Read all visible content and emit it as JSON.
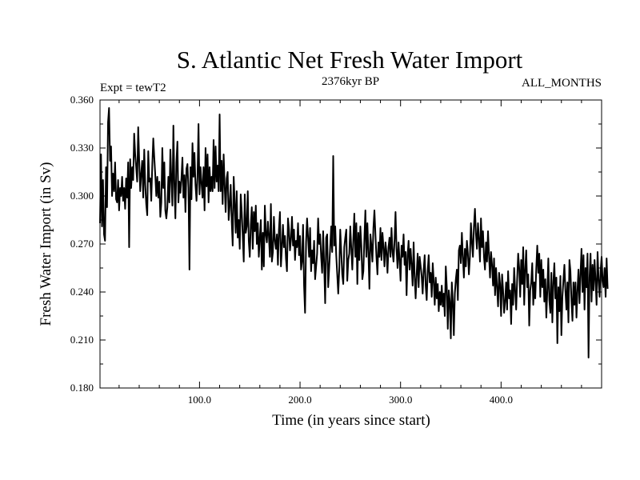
{
  "chart_data": {
    "type": "line",
    "title": "S. Atlantic Net Fresh Water Import",
    "subtitle_left": "Expt = tewT2",
    "subtitle_center": "2376kyr BP",
    "subtitle_right": "ALL_MONTHS",
    "xlabel": "Time (in years since start)",
    "ylabel": "Fresh Water Import (in Sv)",
    "xlim": [
      1,
      500
    ],
    "ylim": [
      0.18,
      0.36
    ],
    "xticks": [
      100,
      200,
      300,
      400
    ],
    "xtick_labels": [
      "100.0",
      "200.0",
      "300.0",
      "400.0"
    ],
    "yticks": [
      0.18,
      0.21,
      0.24,
      0.27,
      0.3,
      0.33,
      0.36
    ],
    "ytick_labels": [
      "0.180",
      "0.210",
      "0.240",
      "0.270",
      "0.300",
      "0.330",
      "0.360"
    ],
    "series": [
      {
        "name": "Fresh Water Import",
        "x_start": 1,
        "x_step": 1,
        "values": [
          0.283,
          0.326,
          0.281,
          0.31,
          0.276,
          0.272,
          0.318,
          0.293,
          0.346,
          0.355,
          0.322,
          0.331,
          0.3,
          0.314,
          0.303,
          0.321,
          0.298,
          0.296,
          0.31,
          0.291,
          0.305,
          0.3,
          0.312,
          0.297,
          0.305,
          0.292,
          0.311,
          0.299,
          0.321,
          0.268,
          0.323,
          0.305,
          0.318,
          0.31,
          0.339,
          0.326,
          0.318,
          0.309,
          0.343,
          0.322,
          0.303,
          0.314,
          0.322,
          0.299,
          0.329,
          0.307,
          0.295,
          0.288,
          0.328,
          0.309,
          0.311,
          0.297,
          0.319,
          0.336,
          0.324,
          0.313,
          0.3,
          0.312,
          0.299,
          0.309,
          0.287,
          0.296,
          0.33,
          0.305,
          0.321,
          0.291,
          0.286,
          0.293,
          0.312,
          0.296,
          0.329,
          0.31,
          0.294,
          0.344,
          0.308,
          0.286,
          0.321,
          0.334,
          0.296,
          0.309,
          0.302,
          0.311,
          0.324,
          0.299,
          0.313,
          0.29,
          0.317,
          0.32,
          0.305,
          0.254,
          0.318,
          0.298,
          0.333,
          0.312,
          0.327,
          0.307,
          0.297,
          0.312,
          0.345,
          0.301,
          0.318,
          0.308,
          0.299,
          0.318,
          0.291,
          0.33,
          0.306,
          0.326,
          0.296,
          0.318,
          0.303,
          0.312,
          0.303,
          0.335,
          0.305,
          0.331,
          0.309,
          0.319,
          0.303,
          0.351,
          0.303,
          0.322,
          0.295,
          0.326,
          0.307,
          0.29,
          0.311,
          0.315,
          0.285,
          0.294,
          0.307,
          0.285,
          0.269,
          0.312,
          0.296,
          0.277,
          0.303,
          0.274,
          0.285,
          0.267,
          0.301,
          0.29,
          0.275,
          0.259,
          0.301,
          0.277,
          0.281,
          0.303,
          0.272,
          0.262,
          0.282,
          0.293,
          0.267,
          0.29,
          0.278,
          0.294,
          0.27,
          0.283,
          0.262,
          0.274,
          0.285,
          0.254,
          0.277,
          0.256,
          0.294,
          0.276,
          0.271,
          0.284,
          0.275,
          0.262,
          0.295,
          0.259,
          0.265,
          0.287,
          0.272,
          0.267,
          0.276,
          0.257,
          0.279,
          0.29,
          0.256,
          0.268,
          0.282,
          0.268,
          0.275,
          0.261,
          0.253,
          0.286,
          0.279,
          0.266,
          0.273,
          0.287,
          0.269,
          0.279,
          0.26,
          0.272,
          0.268,
          0.283,
          0.263,
          0.275,
          0.254,
          0.259,
          0.282,
          0.244,
          0.227,
          0.271,
          0.286,
          0.274,
          0.262,
          0.28,
          0.253,
          0.266,
          0.258,
          0.272,
          0.248,
          0.256,
          0.264,
          0.286,
          0.27,
          0.276,
          0.262,
          0.252,
          0.278,
          0.257,
          0.233,
          0.274,
          0.276,
          0.243,
          0.255,
          0.268,
          0.281,
          0.265,
          0.325,
          0.269,
          0.281,
          0.263,
          0.251,
          0.239,
          0.254,
          0.279,
          0.265,
          0.251,
          0.245,
          0.268,
          0.274,
          0.279,
          0.247,
          0.26,
          0.264,
          0.281,
          0.267,
          0.254,
          0.273,
          0.289,
          0.262,
          0.283,
          0.245,
          0.277,
          0.26,
          0.281,
          0.269,
          0.248,
          0.253,
          0.273,
          0.291,
          0.262,
          0.283,
          0.265,
          0.242,
          0.276,
          0.269,
          0.259,
          0.28,
          0.291,
          0.276,
          0.262,
          0.251,
          0.271,
          0.262,
          0.28,
          0.26,
          0.277,
          0.268,
          0.256,
          0.271,
          0.265,
          0.252,
          0.268,
          0.274,
          0.262,
          0.28,
          0.265,
          0.259,
          0.272,
          0.29,
          0.267,
          0.255,
          0.271,
          0.26,
          0.247,
          0.269,
          0.262,
          0.276,
          0.257,
          0.265,
          0.238,
          0.263,
          0.272,
          0.254,
          0.267,
          0.257,
          0.244,
          0.271,
          0.25,
          0.236,
          0.251,
          0.264,
          0.243,
          0.262,
          0.256,
          0.25,
          0.239,
          0.254,
          0.263,
          0.244,
          0.235,
          0.253,
          0.263,
          0.246,
          0.252,
          0.237,
          0.258,
          0.247,
          0.232,
          0.249,
          0.236,
          0.245,
          0.228,
          0.24,
          0.232,
          0.244,
          0.231,
          0.239,
          0.225,
          0.256,
          0.243,
          0.217,
          0.241,
          0.234,
          0.211,
          0.246,
          0.234,
          0.213,
          0.239,
          0.248,
          0.254,
          0.235,
          0.266,
          0.269,
          0.258,
          0.277,
          0.262,
          0.249,
          0.267,
          0.256,
          0.272,
          0.264,
          0.251,
          0.262,
          0.283,
          0.271,
          0.262,
          0.281,
          0.292,
          0.276,
          0.267,
          0.283,
          0.273,
          0.259,
          0.286,
          0.268,
          0.278,
          0.262,
          0.254,
          0.271,
          0.259,
          0.278,
          0.263,
          0.249,
          0.265,
          0.257,
          0.244,
          0.261,
          0.238,
          0.255,
          0.243,
          0.231,
          0.252,
          0.245,
          0.225,
          0.251,
          0.241,
          0.227,
          0.234,
          0.246,
          0.229,
          0.253,
          0.236,
          0.241,
          0.22,
          0.245,
          0.232,
          0.255,
          0.241,
          0.229,
          0.248,
          0.264,
          0.255,
          0.237,
          0.26,
          0.245,
          0.268,
          0.232,
          0.254,
          0.266,
          0.243,
          0.251,
          0.219,
          0.241,
          0.246,
          0.258,
          0.232,
          0.246,
          0.236,
          0.255,
          0.269,
          0.252,
          0.264,
          0.237,
          0.26,
          0.243,
          0.254,
          0.234,
          0.248,
          0.224,
          0.241,
          0.261,
          0.235,
          0.227,
          0.252,
          0.221,
          0.246,
          0.258,
          0.236,
          0.249,
          0.208,
          0.243,
          0.228,
          0.25,
          0.213,
          0.237,
          0.247,
          0.257,
          0.241,
          0.229,
          0.246,
          0.221,
          0.26,
          0.253,
          0.235,
          0.222,
          0.246,
          0.232,
          0.246,
          0.224,
          0.241,
          0.254,
          0.233,
          0.251,
          0.267,
          0.24,
          0.263,
          0.229,
          0.255,
          0.243,
          0.264,
          0.199,
          0.249,
          0.264,
          0.234,
          0.257,
          0.241,
          0.26,
          0.247,
          0.232,
          0.265,
          0.248,
          0.237,
          0.253,
          0.262,
          0.248,
          0.243,
          0.255,
          0.237,
          0.261,
          0.242
        ]
      }
    ]
  }
}
